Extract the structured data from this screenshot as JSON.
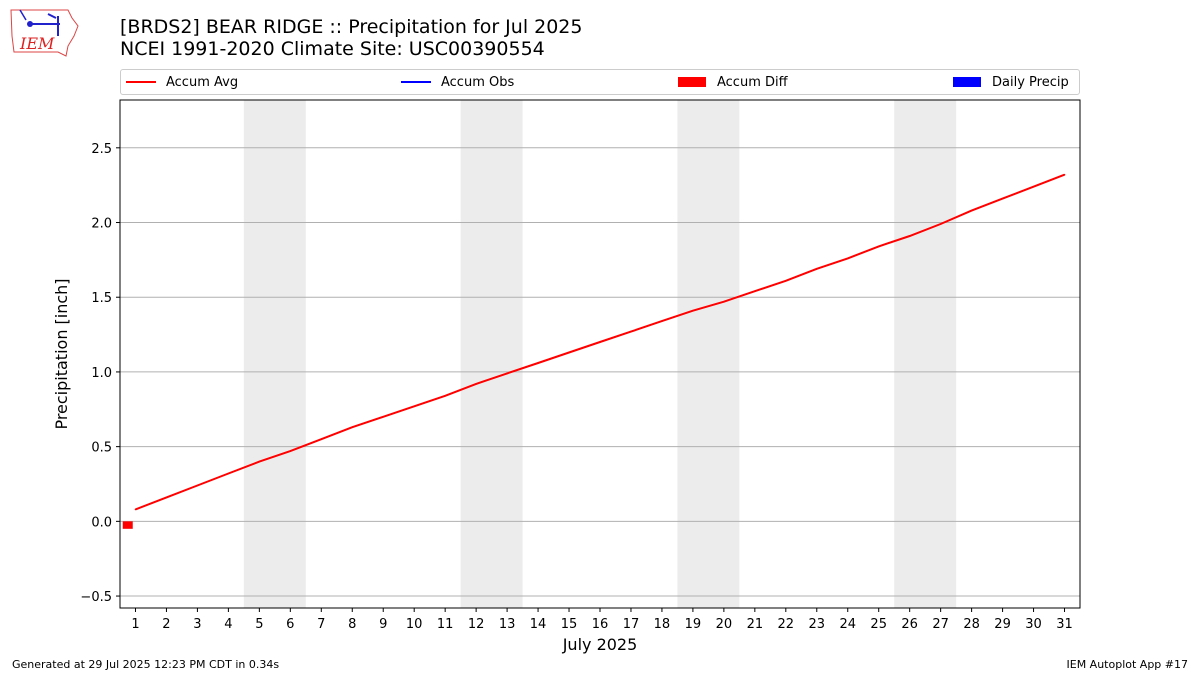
{
  "header": {
    "title_line1": "[BRDS2] BEAR RIDGE :: Precipitation for Jul 2025",
    "title_line2": "NCEI 1991-2020 Climate Site: USC00390554"
  },
  "logo": {
    "text": "IEM"
  },
  "legend": {
    "items": [
      {
        "label": "Accum Avg",
        "color": "#ff0000",
        "kind": "line"
      },
      {
        "label": "Accum Obs",
        "color": "#0000ff",
        "kind": "line"
      },
      {
        "label": "Accum Diff",
        "color": "#ff0000",
        "kind": "box"
      },
      {
        "label": "Daily Precip",
        "color": "#0000ff",
        "kind": "box"
      }
    ]
  },
  "footer": {
    "left": "Generated at 29 Jul 2025 12:23 PM CDT in 0.34s",
    "right": "IEM Autoplot App #17"
  },
  "chart_data": {
    "type": "line",
    "xlabel": "July 2025",
    "ylabel": "Precipitation [inch]",
    "xlim": [
      0.5,
      31.5
    ],
    "ylim": [
      -0.58,
      2.82
    ],
    "x": [
      1,
      2,
      3,
      4,
      5,
      6,
      7,
      8,
      9,
      10,
      11,
      12,
      13,
      14,
      15,
      16,
      17,
      18,
      19,
      20,
      21,
      22,
      23,
      24,
      25,
      26,
      27,
      28,
      29,
      30,
      31
    ],
    "x_tick_labels": [
      "1",
      "2",
      "3",
      "4",
      "5",
      "6",
      "7",
      "8",
      "9",
      "10",
      "11",
      "12",
      "13",
      "14",
      "15",
      "16",
      "17",
      "18",
      "19",
      "20",
      "21",
      "22",
      "23",
      "24",
      "25",
      "26",
      "27",
      "28",
      "29",
      "30",
      "31"
    ],
    "y_ticks": [
      -0.5,
      0.0,
      0.5,
      1.0,
      1.5,
      2.0,
      2.5
    ],
    "y_tick_labels": [
      "−0.5",
      "0.0",
      "0.5",
      "1.0",
      "1.5",
      "2.0",
      "2.5"
    ],
    "grid": "y-major",
    "weekend_bands": [
      [
        4.5,
        6.5
      ],
      [
        11.5,
        13.5
      ],
      [
        18.5,
        20.5
      ],
      [
        25.5,
        27.5
      ]
    ],
    "series": [
      {
        "name": "Accum Avg",
        "color": "#ff0000",
        "values": [
          0.08,
          0.16,
          0.24,
          0.32,
          0.4,
          0.47,
          0.55,
          0.63,
          0.7,
          0.77,
          0.84,
          0.92,
          0.99,
          1.06,
          1.13,
          1.2,
          1.27,
          1.34,
          1.41,
          1.47,
          1.54,
          1.61,
          1.69,
          1.76,
          1.84,
          1.91,
          1.99,
          2.08,
          2.16,
          2.24,
          2.32
        ]
      }
    ],
    "diff_bars": [
      {
        "x": 0.75,
        "value": -0.05,
        "color": "#ff0000"
      }
    ]
  }
}
